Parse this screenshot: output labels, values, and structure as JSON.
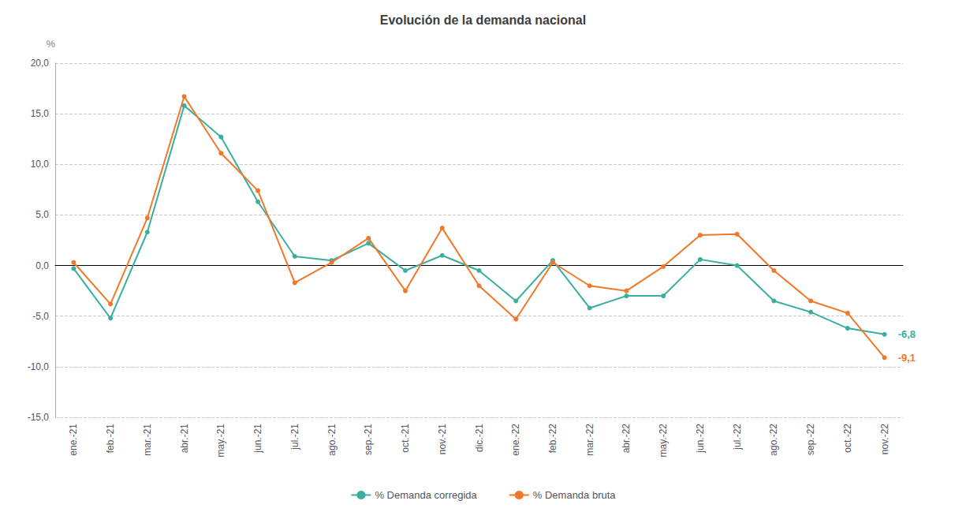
{
  "chart_data": {
    "type": "line",
    "title": "Evolución de la demanda nacional",
    "ylabel": "%",
    "categories": [
      "ene.-21",
      "feb.-21",
      "mar.-21",
      "abr.-21",
      "may.-21",
      "jun.-21",
      "jul.-21",
      "ago.-21",
      "sep.-21",
      "oct.-21",
      "nov.-21",
      "dic.-21",
      "ene.-22",
      "feb.-22",
      "mar.-22",
      "abr.-22",
      "may.-22",
      "jun.-22",
      "jul.-22",
      "ago.-22",
      "sep.-22",
      "oct.-22",
      "nov.-22"
    ],
    "series": [
      {
        "name": "% Demanda corregida",
        "color": "#3aaea0",
        "values": [
          -0.3,
          -5.2,
          3.3,
          15.8,
          12.7,
          6.3,
          0.9,
          0.5,
          2.2,
          -0.5,
          1.0,
          -0.5,
          -3.5,
          0.5,
          -4.2,
          -3.0,
          -3.0,
          0.6,
          0.0,
          -3.5,
          -4.6,
          -6.2,
          -6.8
        ]
      },
      {
        "name": "% Demanda bruta",
        "color": "#f07828",
        "values": [
          0.3,
          -3.8,
          4.7,
          16.7,
          11.1,
          7.4,
          -1.7,
          0.3,
          2.7,
          -2.5,
          3.7,
          -2.0,
          -5.3,
          0.3,
          -2.0,
          -2.5,
          -0.1,
          3.0,
          3.1,
          -0.5,
          -3.5,
          -4.7,
          -9.1
        ]
      }
    ],
    "ylim": [
      -15.0,
      20.0
    ],
    "yticks": [
      {
        "value": -15.0,
        "label": "-15,0"
      },
      {
        "value": -10.0,
        "label": "-10,0"
      },
      {
        "value": -5.0,
        "label": "-5,0"
      },
      {
        "value": 0.0,
        "label": "0,0"
      },
      {
        "value": 5.0,
        "label": "5,0"
      },
      {
        "value": 10.0,
        "label": "10,0"
      },
      {
        "value": 15.0,
        "label": "15,0"
      },
      {
        "value": 20.0,
        "label": "20,0"
      }
    ],
    "annotations": [
      {
        "text": "-6,8",
        "series": "% Demanda corregida",
        "x": "nov.-22",
        "y": -6.8
      },
      {
        "text": "-9,1",
        "series": "% Demanda bruta",
        "x": "nov.-22",
        "y": -9.1
      }
    ],
    "marker": "circle",
    "grid": true,
    "legend": "bottom"
  }
}
